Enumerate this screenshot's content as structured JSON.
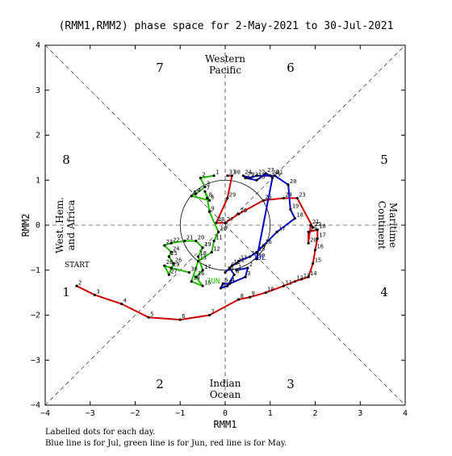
{
  "chart_data": {
    "type": "line",
    "title": "(RMM1,RMM2) phase space for  2-May-2021 to 30-Jul-2021",
    "xlabel": "RMM1",
    "ylabel": "RMM2",
    "xlim": [
      -4,
      4
    ],
    "ylim": [
      -4,
      4
    ],
    "xticks": [
      "−4",
      "−3",
      "−2",
      "−1",
      "0",
      "1",
      "2",
      "3",
      "4"
    ],
    "yticks": [
      "−4",
      "−3",
      "−2",
      "−1",
      "0",
      "1",
      "2",
      "3",
      "4"
    ],
    "phases": [
      "1",
      "2",
      "3",
      "4",
      "5",
      "6",
      "7",
      "8"
    ],
    "regions": {
      "top": [
        "Western",
        "Pacific"
      ],
      "bottom": [
        "Indian",
        "Ocean"
      ],
      "left": [
        "West. Hem.",
        "and Africa"
      ],
      "right": [
        "Maritime",
        "Continent"
      ]
    },
    "start_label": "START",
    "month_labels": {
      "jun": "JUN",
      "jul": "JUL"
    },
    "footer": [
      "Labelled dots for each day.",
      "Blue line is for Jul, green line is for Jun, red line is for May."
    ],
    "series": [
      {
        "color": "#cc0000",
        "points": [
          {
            "d": "2",
            "x": -3.3,
            "y": -1.35
          },
          {
            "d": "3",
            "x": -2.9,
            "y": -1.55
          },
          {
            "d": "4",
            "x": -2.3,
            "y": -1.75
          },
          {
            "d": "5",
            "x": -1.7,
            "y": -2.05
          },
          {
            "d": "6",
            "x": -1.0,
            "y": -2.1
          },
          {
            "d": "7",
            "x": -0.35,
            "y": -2.0
          },
          {
            "d": "8",
            "x": 0.3,
            "y": -1.65
          },
          {
            "d": "9",
            "x": 0.55,
            "y": -1.6
          },
          {
            "d": "10",
            "x": 0.9,
            "y": -1.5
          },
          {
            "d": "11",
            "x": 1.3,
            "y": -1.35
          },
          {
            "d": "12",
            "x": 1.55,
            "y": -1.25
          },
          {
            "d": "13",
            "x": 1.7,
            "y": -1.2
          },
          {
            "d": "14",
            "x": 1.85,
            "y": -1.15
          },
          {
            "d": "15",
            "x": 1.95,
            "y": -0.85
          },
          {
            "d": "16",
            "x": 2.0,
            "y": -0.55
          },
          {
            "d": "17",
            "x": 2.05,
            "y": -0.3
          },
          {
            "d": "18",
            "x": 2.05,
            "y": -0.1
          },
          {
            "d": "19",
            "x": 1.85,
            "y": -0.15
          },
          {
            "d": "20",
            "x": 1.85,
            "y": -0.4
          },
          {
            "d": "21",
            "x": 1.9,
            "y": 0.0
          },
          {
            "d": "22",
            "x": 1.95,
            "y": -0.05
          },
          {
            "d": "23",
            "x": 1.6,
            "y": 0.6
          },
          {
            "d": "24",
            "x": 1.3,
            "y": 0.6
          },
          {
            "d": "25",
            "x": 0.85,
            "y": 0.55
          },
          {
            "d": "26",
            "x": 0.3,
            "y": 0.25
          },
          {
            "d": "27",
            "x": 0.0,
            "y": 0.05
          },
          {
            "d": "28",
            "x": -0.2,
            "y": 0.05
          },
          {
            "d": "29",
            "x": 0.05,
            "y": 0.6
          },
          {
            "d": "30",
            "x": 0.15,
            "y": 1.1
          },
          {
            "d": "31",
            "x": 0.05,
            "y": 1.1
          }
        ]
      },
      {
        "color": "#22bb00",
        "points": [
          {
            "d": "1",
            "x": -0.25,
            "y": 1.1
          },
          {
            "d": "2",
            "x": -0.55,
            "y": 1.05
          },
          {
            "d": "3",
            "x": -0.45,
            "y": 0.85
          },
          {
            "d": "4",
            "x": -0.65,
            "y": 0.7
          },
          {
            "d": "5",
            "x": -0.75,
            "y": 0.65
          },
          {
            "d": "6",
            "x": -0.35,
            "y": 0.55
          },
          {
            "d": "7",
            "x": -0.45,
            "y": 0.75
          },
          {
            "d": "8",
            "x": -0.4,
            "y": 0.6
          },
          {
            "d": "9",
            "x": -0.35,
            "y": 0.3
          },
          {
            "d": "10",
            "x": -0.15,
            "y": -0.15
          },
          {
            "d": "11",
            "x": -0.25,
            "y": -0.35
          },
          {
            "d": "12",
            "x": -0.3,
            "y": -0.6
          },
          {
            "d": "13",
            "x": -0.6,
            "y": -0.8
          },
          {
            "d": "14",
            "x": -0.75,
            "y": -1.25
          },
          {
            "d": "15",
            "x": -0.5,
            "y": -1.35
          },
          {
            "d": "16",
            "x": -0.65,
            "y": -1.15
          },
          {
            "d": "17",
            "x": -0.5,
            "y": -1.0
          },
          {
            "d": "18",
            "x": -0.6,
            "y": -0.7
          },
          {
            "d": "19",
            "x": -0.5,
            "y": -0.5
          },
          {
            "d": "20",
            "x": -0.65,
            "y": -0.35
          },
          {
            "d": "21",
            "x": -0.9,
            "y": -0.35
          },
          {
            "d": "22",
            "x": -1.2,
            "y": -0.4
          },
          {
            "d": "23",
            "x": -1.35,
            "y": -0.45
          },
          {
            "d": "24",
            "x": -1.2,
            "y": -0.6
          },
          {
            "d": "25",
            "x": -1.25,
            "y": -0.7
          },
          {
            "d": "26",
            "x": -1.15,
            "y": -0.85
          },
          {
            "d": "27",
            "x": -1.25,
            "y": -1.1
          },
          {
            "d": "28",
            "x": -1.35,
            "y": -0.9
          },
          {
            "d": "29",
            "x": -1.2,
            "y": -0.95
          },
          {
            "d": "30",
            "x": -0.8,
            "y": -1.05
          }
        ]
      },
      {
        "color": "#0000cc",
        "points": [
          {
            "d": "1",
            "x": 0.25,
            "y": -1.0
          },
          {
            "d": "2",
            "x": 0.5,
            "y": -0.95
          },
          {
            "d": "3",
            "x": 0.45,
            "y": -1.15
          },
          {
            "d": "4",
            "x": 0.1,
            "y": -1.3
          },
          {
            "d": "5",
            "x": -0.05,
            "y": -1.3
          },
          {
            "d": "6",
            "x": -0.1,
            "y": -1.4
          },
          {
            "d": "7",
            "x": 0.05,
            "y": -1.35
          },
          {
            "d": "8",
            "x": 0.2,
            "y": -1.1
          },
          {
            "d": "9",
            "x": 0.1,
            "y": -0.95
          },
          {
            "d": "10",
            "x": 0.0,
            "y": -1.05
          },
          {
            "d": "11",
            "x": 0.15,
            "y": -0.9
          },
          {
            "d": "12",
            "x": 0.25,
            "y": -0.85
          },
          {
            "d": "13",
            "x": 0.3,
            "y": -0.8
          },
          {
            "d": "14",
            "x": 0.55,
            "y": -0.7
          },
          {
            "d": "15",
            "x": 0.7,
            "y": -0.6
          },
          {
            "d": "16",
            "x": 0.85,
            "y": -0.45
          },
          {
            "d": "17",
            "x": 1.15,
            "y": -0.15
          },
          {
            "d": "18",
            "x": 1.55,
            "y": 0.15
          },
          {
            "d": "19",
            "x": 1.45,
            "y": 0.35
          },
          {
            "d": "20",
            "x": 1.4,
            "y": 0.9
          },
          {
            "d": "21",
            "x": 1.1,
            "y": 1.1
          },
          {
            "d": "22",
            "x": 0.7,
            "y": 1.1
          },
          {
            "d": "23",
            "x": 0.55,
            "y": 1.05
          },
          {
            "d": "24",
            "x": 0.4,
            "y": 1.1
          },
          {
            "d": "25",
            "x": 0.45,
            "y": 1.05
          },
          {
            "d": "26",
            "x": 0.7,
            "y": 1.0
          },
          {
            "d": "27",
            "x": 0.9,
            "y": 1.15
          },
          {
            "d": "28",
            "x": 1.0,
            "y": 1.1
          },
          {
            "d": "29",
            "x": 1.05,
            "y": 1.05
          },
          {
            "d": "30",
            "x": 0.7,
            "y": -0.75
          }
        ]
      }
    ]
  }
}
